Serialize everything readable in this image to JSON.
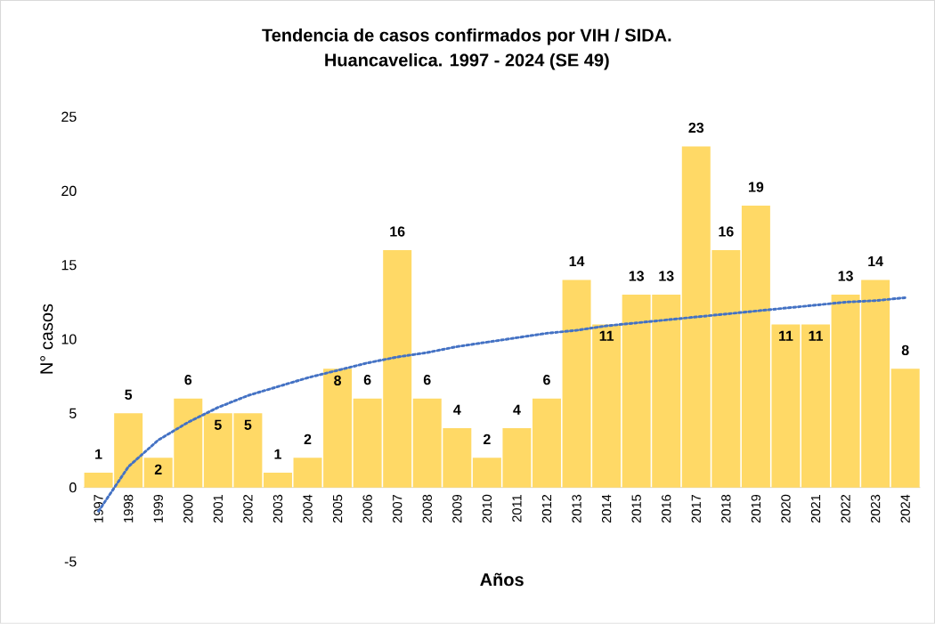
{
  "chart_data": {
    "type": "bar",
    "title": "Tendencia de casos confirmados por VIH / SIDA.",
    "subtitle": "Huancavelica. 1997 - 2024 (SE 49)",
    "xlabel": "Años",
    "ylabel": "N° casos",
    "categories": [
      "1997",
      "1998",
      "1999",
      "2000",
      "2001",
      "2002",
      "2003",
      "2004",
      "2005",
      "2006",
      "2007",
      "2008",
      "2009",
      "2010",
      "2011",
      "2012",
      "2013",
      "2014",
      "2015",
      "2016",
      "2017",
      "2018",
      "2019",
      "2020",
      "2021",
      "2022",
      "2023",
      "2024"
    ],
    "series": [
      {
        "color": "#ffd966",
        "data_labels": true,
        "values": [
          1,
          5,
          2,
          6,
          5,
          5,
          1,
          2,
          8,
          6,
          16,
          6,
          4,
          2,
          4,
          6,
          14,
          11,
          13,
          13,
          23,
          16,
          19,
          11,
          11,
          13,
          14,
          8
        ]
      },
      {
        "type": "line",
        "color": "#4472c4",
        "line_style": "dotted",
        "marker": "none",
        "values": [
          -1.6,
          1.4,
          3.2,
          4.4,
          5.4,
          6.2,
          6.8,
          7.4,
          7.9,
          8.4,
          8.8,
          9.1,
          9.5,
          9.8,
          10.1,
          10.4,
          10.6,
          10.9,
          11.1,
          11.3,
          11.5,
          11.7,
          11.9,
          12.1,
          12.3,
          12.5,
          12.6,
          12.8
        ]
      }
    ],
    "ylim": [
      -5,
      25
    ],
    "yticks": [
      -5,
      0,
      5,
      10,
      15,
      20,
      25
    ],
    "grid": false
  }
}
